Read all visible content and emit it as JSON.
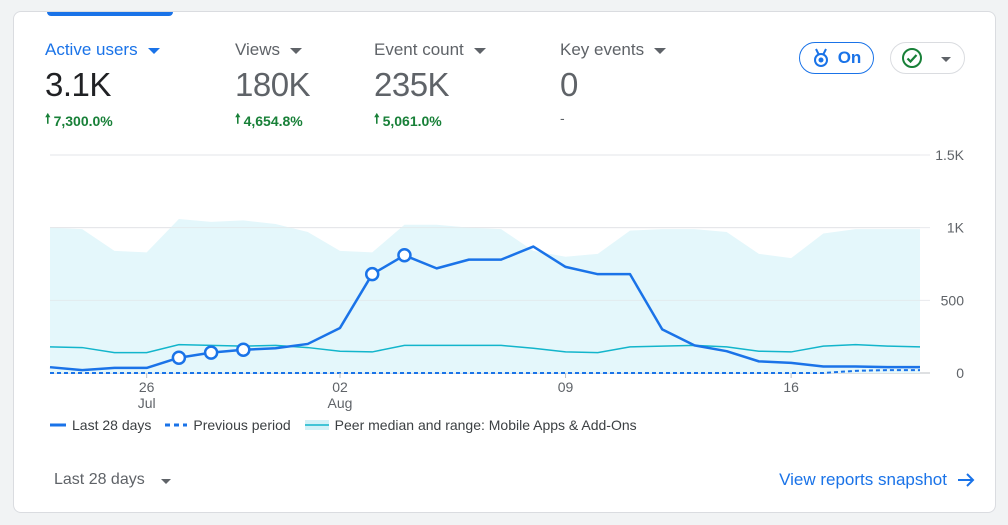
{
  "metrics": [
    {
      "name": "Active users",
      "value": "3.1K",
      "delta": "7,300.0%",
      "active": true
    },
    {
      "name": "Views",
      "value": "180K",
      "delta": "4,654.8%",
      "active": false
    },
    {
      "name": "Event count",
      "value": "235K",
      "delta": "5,061.0%",
      "active": false
    },
    {
      "name": "Key events",
      "value": "0",
      "delta": "-",
      "active": false
    }
  ],
  "toolbar": {
    "on_label": "On"
  },
  "colors": {
    "accent": "#1a73e8",
    "positive": "#188038",
    "peer_fill": "#e4f7fb",
    "peer_line": "#12b5cb"
  },
  "chart_data": {
    "type": "line",
    "x_ticks": [
      {
        "label": "26",
        "sub": "Jul",
        "index": 3
      },
      {
        "label": "02",
        "sub": "Aug",
        "index": 9
      },
      {
        "label": "09",
        "sub": "",
        "index": 16
      },
      {
        "label": "16",
        "sub": "",
        "index": 23
      }
    ],
    "y_ticks": [
      "0",
      "500",
      "1K",
      "1.5K"
    ],
    "ylim": [
      0,
      1500
    ],
    "series": [
      {
        "name": "Last 28 days",
        "values": [
          40,
          20,
          35,
          35,
          105,
          140,
          160,
          170,
          200,
          310,
          680,
          810,
          720,
          780,
          780,
          870,
          730,
          680,
          680,
          300,
          190,
          150,
          80,
          70,
          45,
          45,
          40,
          40
        ],
        "markers": [
          4,
          5,
          6,
          10,
          11
        ]
      },
      {
        "name": "Previous period",
        "values": [
          0,
          0,
          0,
          0,
          0,
          0,
          0,
          0,
          0,
          0,
          0,
          0,
          0,
          0,
          0,
          0,
          0,
          0,
          0,
          0,
          0,
          0,
          0,
          0,
          0,
          15,
          20,
          20
        ]
      },
      {
        "name": "Peer median and range: Mobile Apps & Add-Ons",
        "median": [
          180,
          175,
          140,
          140,
          195,
          190,
          185,
          190,
          175,
          150,
          145,
          190,
          190,
          190,
          190,
          170,
          145,
          140,
          180,
          185,
          190,
          180,
          150,
          145,
          185,
          195,
          185,
          180
        ],
        "upper": [
          1000,
          990,
          840,
          830,
          1060,
          1040,
          1050,
          1025,
          970,
          840,
          830,
          1020,
          1020,
          1000,
          990,
          840,
          800,
          820,
          980,
          990,
          990,
          970,
          820,
          790,
          960,
          990,
          990,
          990
        ]
      }
    ],
    "legend_position": "bottom"
  },
  "legend": [
    {
      "label": "Last 28 days"
    },
    {
      "label": "Previous period"
    },
    {
      "label": "Peer median and range: Mobile Apps & Add-Ons"
    }
  ],
  "footer": {
    "range_label": "Last 28 days",
    "snapshot_label": "View reports snapshot"
  }
}
